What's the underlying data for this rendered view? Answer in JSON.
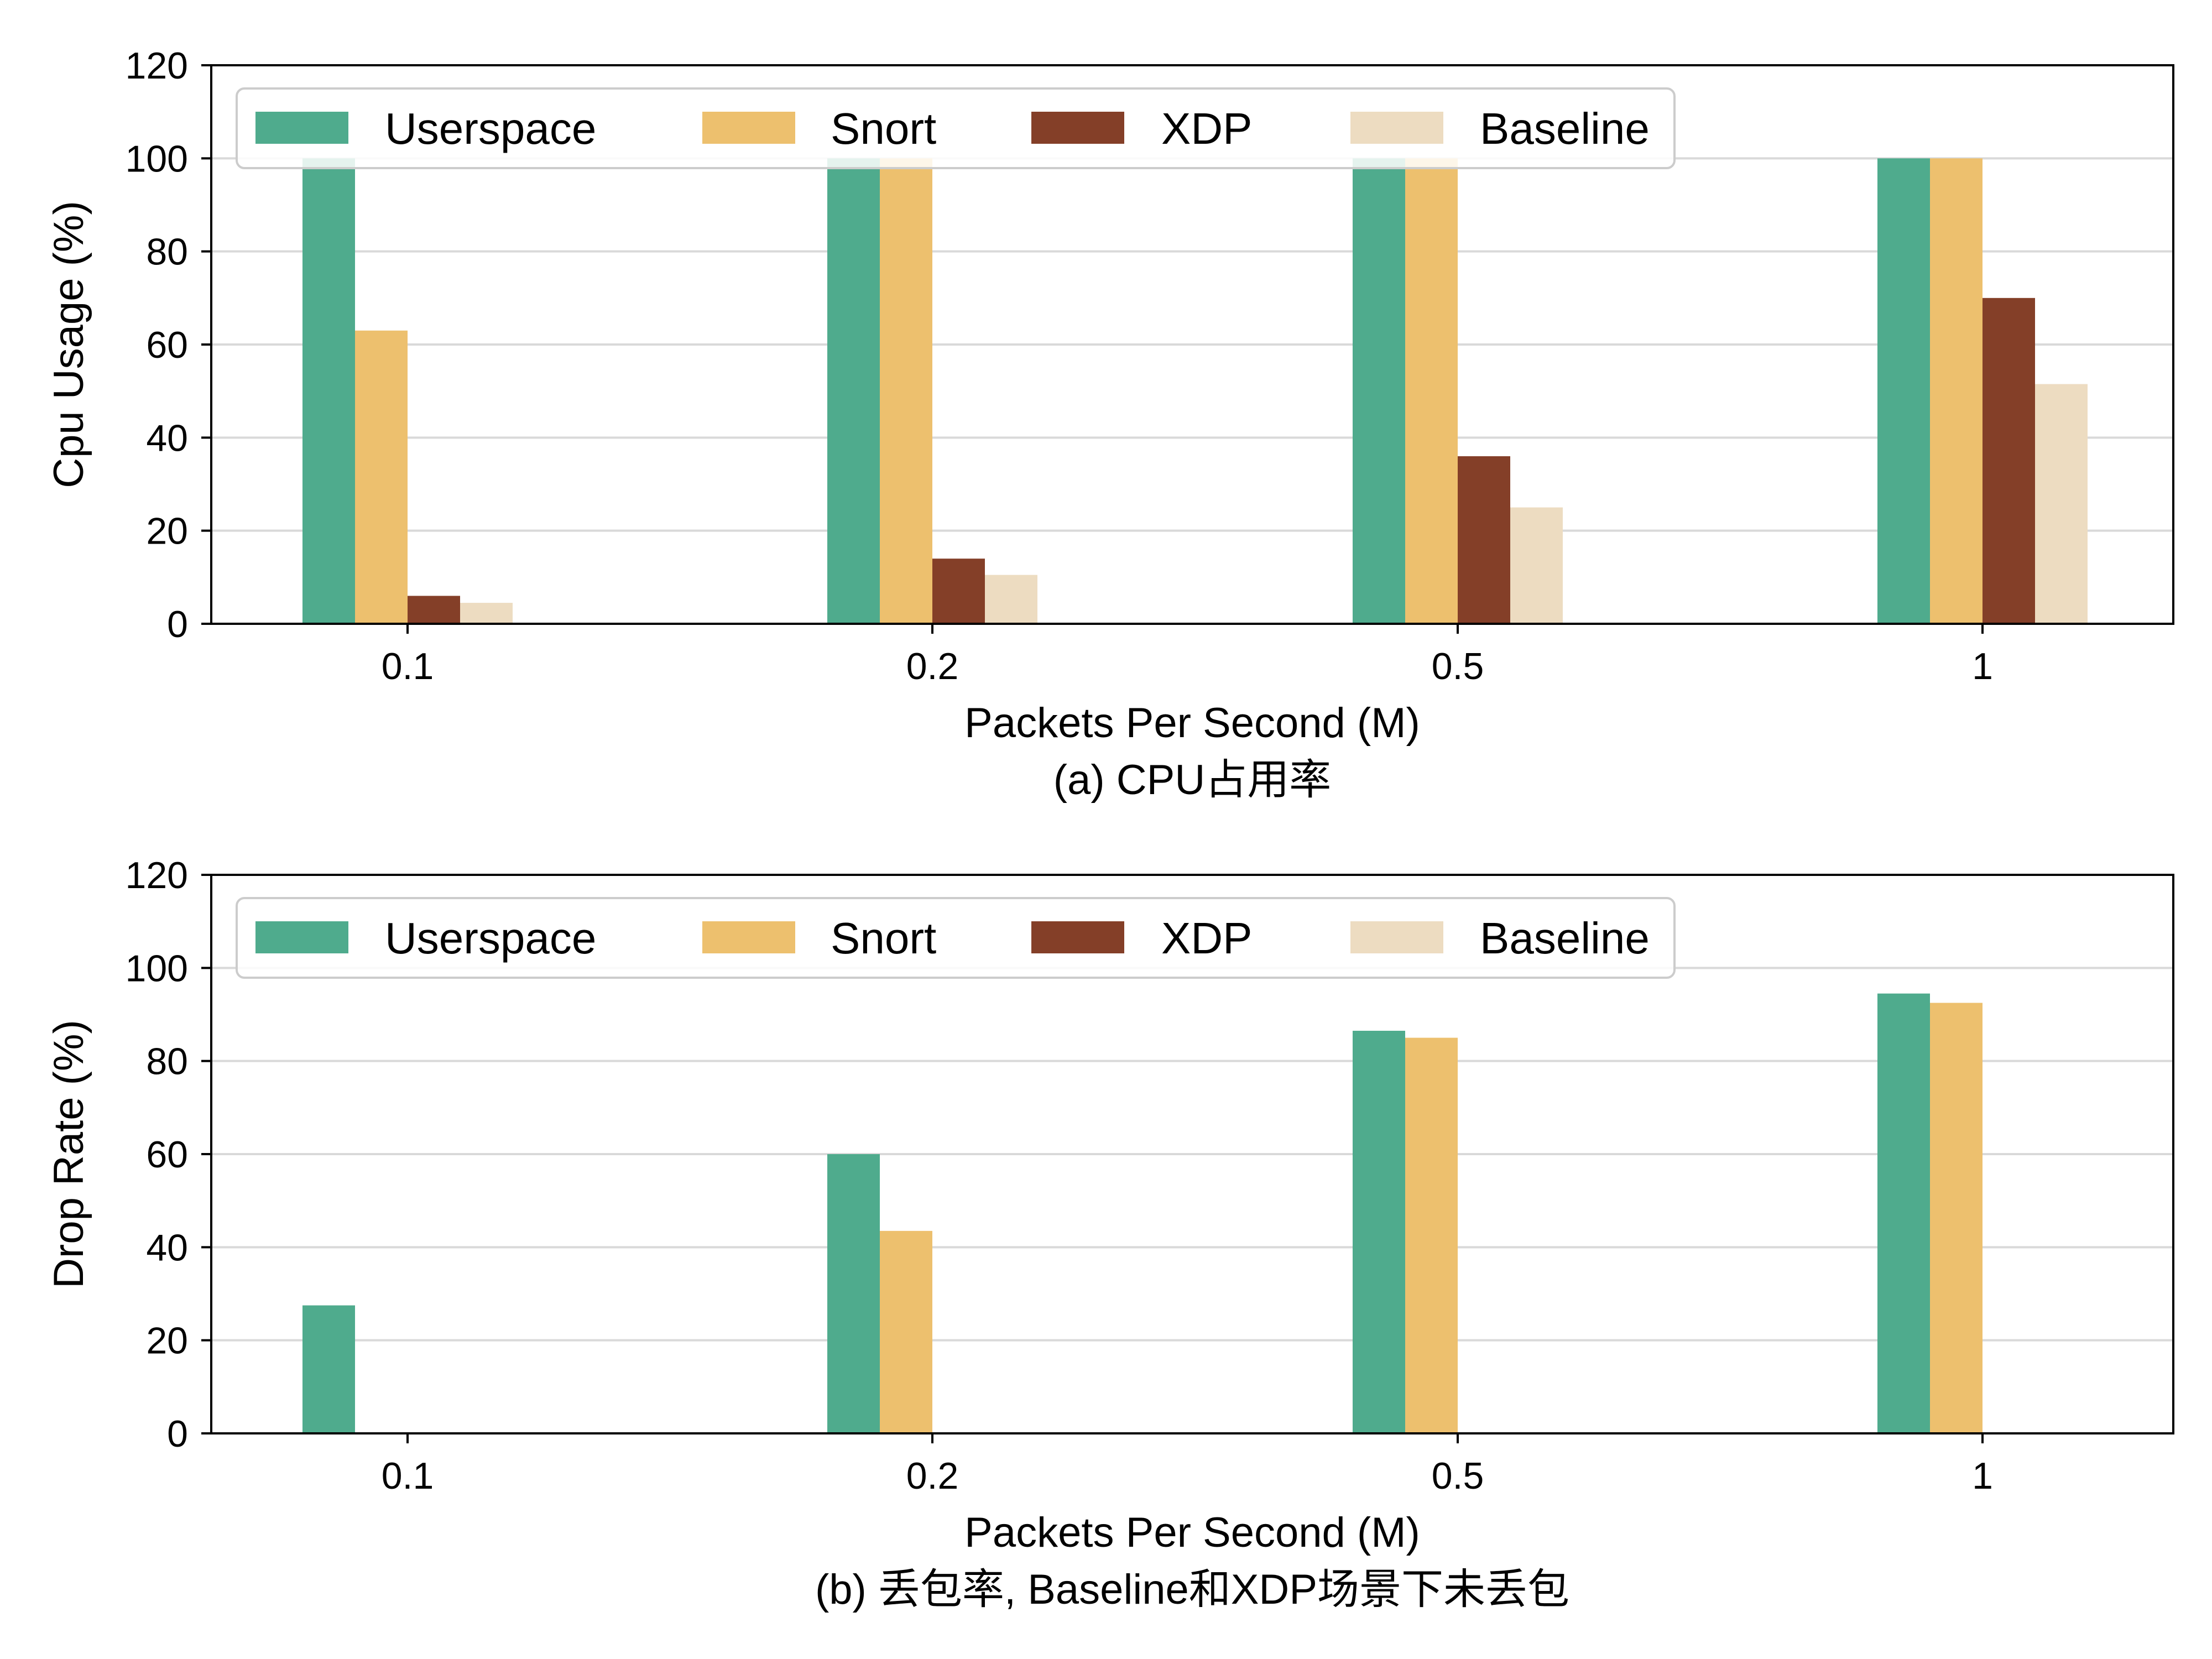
{
  "colors": {
    "Userspace": "#4fab8d",
    "Snort": "#edc06e",
    "XDP": "#843f28",
    "Baseline": "#eddcc1",
    "grid": "#d9d9d9"
  },
  "chart_data": [
    {
      "type": "bar",
      "categories": [
        "0.1",
        "0.2",
        "0.5",
        "1"
      ],
      "series": [
        {
          "name": "Userspace",
          "values": [
            100,
            100,
            100,
            100
          ]
        },
        {
          "name": "Snort",
          "values": [
            63,
            100,
            100,
            100
          ]
        },
        {
          "name": "XDP",
          "values": [
            6,
            14,
            36,
            70
          ]
        },
        {
          "name": "Baseline",
          "values": [
            4.5,
            10.5,
            25,
            51.5
          ]
        }
      ],
      "xlabel": "Packets Per Second (M)",
      "ylabel": "Cpu Usage (%)",
      "caption": "(a) CPU占用率",
      "ylim": [
        0,
        120
      ],
      "yticks": [
        "0",
        "20",
        "40",
        "60",
        "80",
        "100",
        "120"
      ],
      "grid": "horizontal",
      "legend": "top, 4 columns"
    },
    {
      "type": "bar",
      "categories": [
        "0.1",
        "0.2",
        "0.5",
        "1"
      ],
      "series": [
        {
          "name": "Userspace",
          "values": [
            27.5,
            60,
            86.5,
            94.5
          ]
        },
        {
          "name": "Snort",
          "values": [
            0,
            43.5,
            85,
            92.5
          ]
        },
        {
          "name": "XDP",
          "values": [
            0,
            0,
            0,
            0
          ]
        },
        {
          "name": "Baseline",
          "values": [
            0,
            0,
            0,
            0
          ]
        }
      ],
      "xlabel": "Packets Per Second (M)",
      "ylabel": "Drop Rate (%)",
      "caption": "(b) 丢包率, Baseline和XDP场景下未丢包",
      "ylim": [
        0,
        120
      ],
      "yticks": [
        "0",
        "20",
        "40",
        "60",
        "80",
        "100",
        "120"
      ],
      "grid": "horizontal",
      "legend": "top, 4 columns"
    }
  ]
}
